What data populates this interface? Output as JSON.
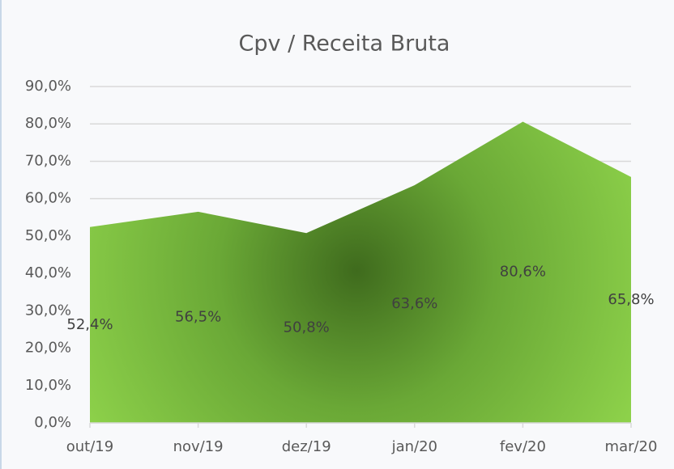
{
  "chart_data": {
    "type": "area",
    "title": "Cpv / Receita Bruta",
    "categories": [
      "out/19",
      "nov/19",
      "dez/19",
      "jan/20",
      "fev/20",
      "mar/20"
    ],
    "values": [
      52.4,
      56.5,
      50.8,
      63.6,
      80.6,
      65.8
    ],
    "value_labels": [
      "52,4%",
      "56,5%",
      "50,8%",
      "63,6%",
      "80,6%",
      "65,8%"
    ],
    "color": "#8dd14a",
    "ylim": [
      0,
      90
    ],
    "yticks": [
      {
        "value": 0,
        "label": "0,0%"
      },
      {
        "value": 10,
        "label": "10,0%"
      },
      {
        "value": 20,
        "label": "20,0%"
      },
      {
        "value": 30,
        "label": "30,0%"
      },
      {
        "value": 40,
        "label": "40,0%"
      },
      {
        "value": 50,
        "label": "50,0%"
      },
      {
        "value": 60,
        "label": "60,0%"
      },
      {
        "value": 70,
        "label": "70,0%"
      },
      {
        "value": 80,
        "label": "80,0%"
      },
      {
        "value": 90,
        "label": "90,0%"
      }
    ],
    "grid": true
  }
}
